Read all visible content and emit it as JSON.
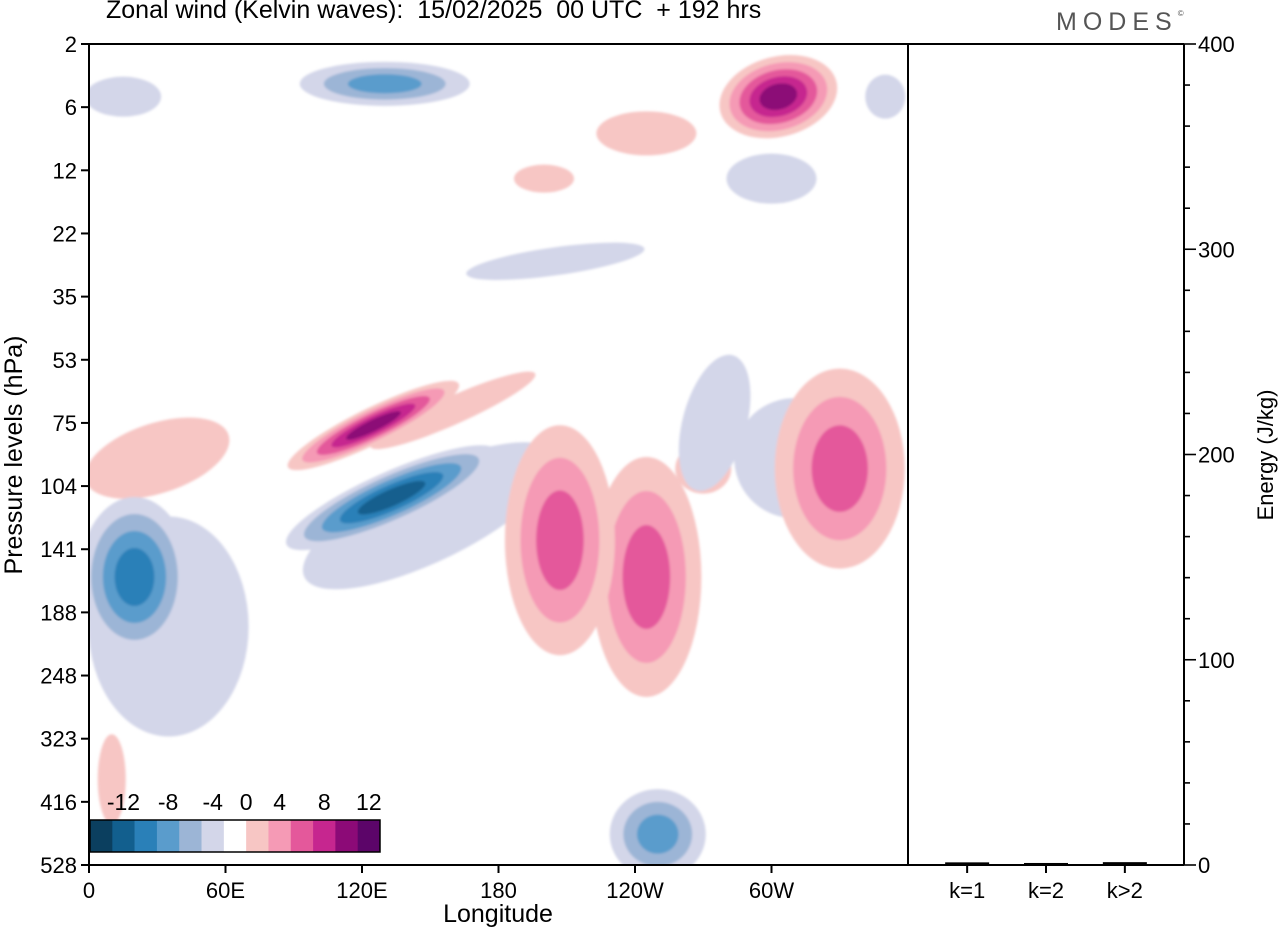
{
  "figure": {
    "title": "Zonal wind (Kelvin waves):  15/02/2025  00 UTC  + 192 hrs",
    "logo_text": "MODES",
    "logo_mark": "©"
  },
  "chart_data": [
    {
      "type": "heatmap",
      "title": "Zonal wind (Kelvin waves):  15/02/2025  00 UTC  + 192 hrs",
      "xlabel": "Longitude",
      "ylabel": "Pressure levels (hPa)",
      "x_ticks": [
        "0",
        "60E",
        "120E",
        "180",
        "120W",
        "60W"
      ],
      "x_range_deg_east": [
        0,
        360
      ],
      "y_ticks": [
        "2",
        "6",
        "12",
        "22",
        "35",
        "53",
        "75",
        "104",
        "141",
        "188",
        "248",
        "323",
        "416",
        "528"
      ],
      "y_order": "top-to-bottom",
      "colorbar": {
        "labels": [
          "-12",
          "-8",
          "-4",
          "0",
          "4",
          "8",
          "12"
        ],
        "levels": [
          -16,
          -14,
          -12,
          -10,
          -8,
          -6,
          -4,
          -2,
          2,
          4,
          6,
          8,
          10,
          12,
          14
        ],
        "colors": [
          "#0b3f5f",
          "#125f8e",
          "#2a80b8",
          "#5a9ccc",
          "#9cb5d6",
          "#d3d6e9",
          "#ffffff",
          "#f7c6c4",
          "#f59ab5",
          "#e4589b",
          "#c6268f",
          "#8c0a77",
          "#5c0569"
        ]
      },
      "features": [
        {
          "sign": "negative",
          "peak": -10,
          "center_lon": 133,
          "center_hPa": 110
        },
        {
          "sign": "positive",
          "peak": 10,
          "center_lon": 125,
          "center_hPa": 76
        },
        {
          "sign": "negative",
          "peak": -8,
          "center_lon": 20,
          "center_hPa": 160
        },
        {
          "sign": "positive",
          "peak": 6,
          "center_lon": 245,
          "center_hPa": 160
        },
        {
          "sign": "positive",
          "peak": 6,
          "center_lon": 207,
          "center_hPa": 135
        },
        {
          "sign": "positive",
          "peak": 10,
          "center_lon": 303,
          "center_hPa": 5
        },
        {
          "sign": "negative",
          "peak": -6,
          "center_lon": 130,
          "center_hPa": 4
        },
        {
          "sign": "negative",
          "peak": -6,
          "center_lon": 250,
          "center_hPa": 470
        },
        {
          "sign": "positive",
          "peak": 6,
          "center_lon": 330,
          "center_hPa": 95
        }
      ]
    },
    {
      "type": "bar",
      "categories": [
        "k=1",
        "k=2",
        "k>2"
      ],
      "values": [
        0.8,
        0.5,
        0.9
      ],
      "ylabel": "Energy (J/kg)",
      "ylim": [
        0,
        400
      ],
      "y_ticks": [
        "0",
        "100",
        "200",
        "300",
        "400"
      ],
      "y_minor_step": 20
    }
  ]
}
